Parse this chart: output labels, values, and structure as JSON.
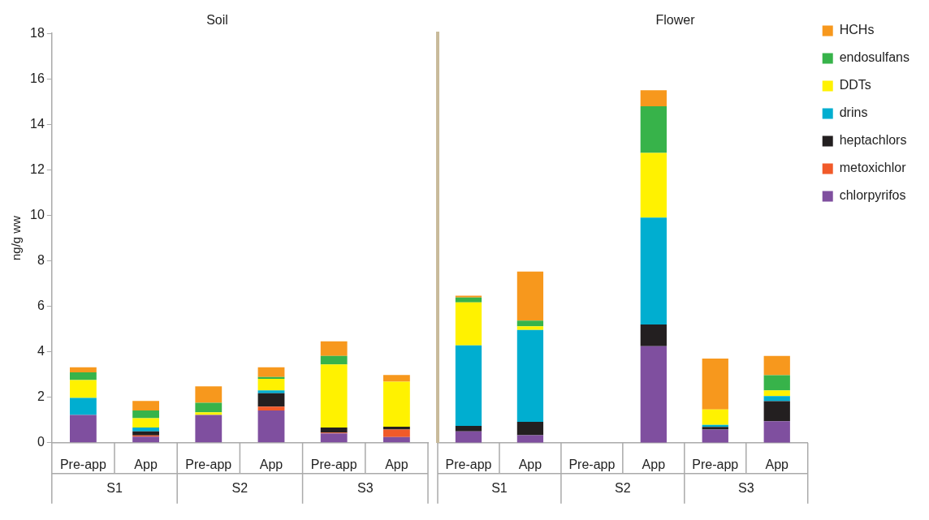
{
  "chart_data": [
    {
      "type": "bar",
      "stacked": true,
      "title": "Soil",
      "ylabel": "ng/g ww",
      "categories": [
        "Pre-app",
        "App",
        "Pre-app",
        "App",
        "Pre-app",
        "App"
      ],
      "annotations": [
        "S1",
        "S2",
        "S3"
      ],
      "series": [
        {
          "color": "#7f4f9f",
          "values": [
            1.22,
            0.27,
            1.22,
            1.42,
            0.41,
            0.25
          ]
        },
        {
          "color": "#f15a29",
          "values": [
            0,
            0.05,
            0,
            0.17,
            0.04,
            0.33
          ]
        },
        {
          "color": "#231f20",
          "values": [
            0,
            0.18,
            0,
            0.59,
            0.22,
            0.13
          ]
        },
        {
          "color": "#00aed0",
          "values": [
            0.75,
            0.17,
            0,
            0.12,
            0,
            0
          ]
        },
        {
          "color": "#fff200",
          "values": [
            0.79,
            0.41,
            0.12,
            0.51,
            2.77,
            1.98
          ]
        },
        {
          "color": "#37b34a",
          "values": [
            0.34,
            0.34,
            0.42,
            0.08,
            0.38,
            0
          ]
        },
        {
          "color": "#f7981d",
          "values": [
            0.22,
            0.42,
            0.72,
            0.43,
            0.64,
            0.29
          ]
        }
      ],
      "ylim": [
        0,
        18
      ],
      "yticks": [
        0,
        2,
        4,
        6,
        8,
        10,
        12,
        14,
        16,
        18
      ]
    },
    {
      "type": "bar",
      "stacked": true,
      "title": "Flower",
      "categories": [
        "Pre-app",
        "App",
        "Pre-app",
        "App",
        "Pre-app",
        "App"
      ],
      "annotations": [
        "S1",
        "S2",
        "S3"
      ],
      "series": [
        {
          "name": "chlorpyrifos",
          "color": "#7f4f9f",
          "values": [
            0.5,
            0.33,
            null,
            4.25,
            0.58,
            0.95
          ]
        },
        {
          "name": "metoxichlor",
          "color": "#f15a29",
          "values": [
            0,
            0,
            null,
            0,
            0,
            0
          ]
        },
        {
          "name": "heptachlors",
          "color": "#231f20",
          "values": [
            0.24,
            0.59,
            null,
            0.95,
            0.12,
            0.88
          ]
        },
        {
          "name": "drins",
          "color": "#00aed0",
          "values": [
            3.54,
            4.04,
            null,
            4.7,
            0.09,
            0.22
          ]
        },
        {
          "name": "DDTs",
          "color": "#fff200",
          "values": [
            1.89,
            0.16,
            null,
            2.85,
            0.67,
            0.25
          ]
        },
        {
          "name": "endosulfans",
          "color": "#37b34a",
          "values": [
            0.22,
            0.25,
            null,
            2.05,
            0,
            0.67
          ]
        },
        {
          "name": "HCHs",
          "color": "#f7981d",
          "values": [
            0.08,
            2.16,
            null,
            0.7,
            2.24,
            0.85
          ]
        }
      ],
      "ylim": [
        0,
        18
      ],
      "yticks": [
        0,
        2,
        4,
        6,
        8,
        10,
        12,
        14,
        16,
        18
      ],
      "tick_labels": "x",
      "legend": "top right"
    }
  ]
}
